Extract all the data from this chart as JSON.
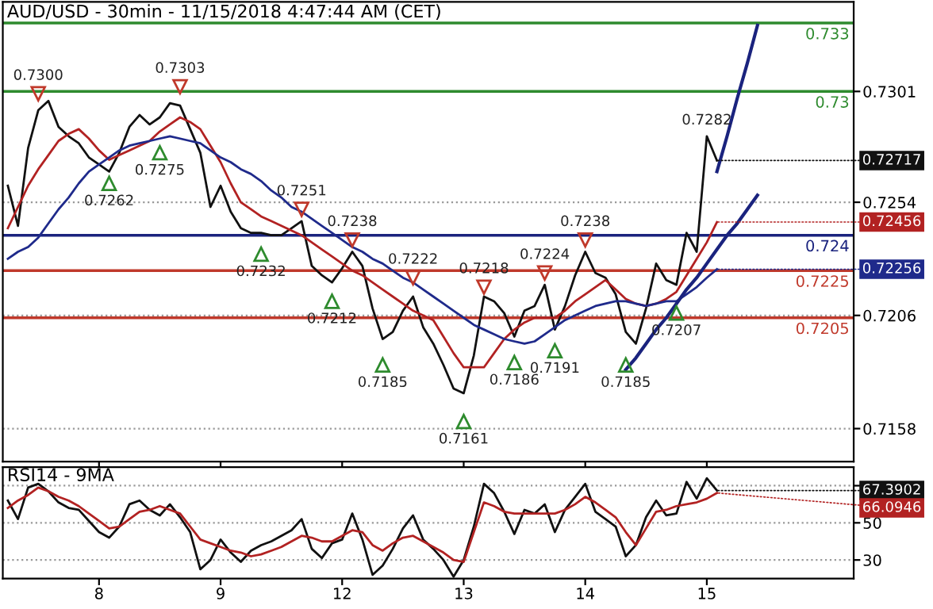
{
  "chart_data": [
    {
      "type": "line",
      "title": "AUD/USD - 30min - 11/15/2018 4:47:44 AM (CET)",
      "categories": [
        null,
        null,
        null,
        null,
        null,
        null,
        null,
        null,
        null,
        "8",
        null,
        null,
        null,
        null,
        null,
        null,
        null,
        null,
        null,
        null,
        null,
        "9",
        null,
        null,
        null,
        null,
        null,
        null,
        null,
        null,
        null,
        null,
        null,
        "12",
        null,
        null,
        null,
        null,
        null,
        null,
        null,
        null,
        null,
        null,
        null,
        "13",
        null,
        null,
        null,
        null,
        null,
        null,
        null,
        null,
        null,
        null,
        null,
        "14",
        null,
        null,
        null,
        null,
        null,
        null,
        null,
        null,
        null,
        null,
        null,
        "15",
        null,
        null,
        null,
        null,
        null,
        null,
        null,
        null,
        null,
        null,
        null,
        null,
        null,
        null
      ],
      "ylim": [
        0.7144,
        0.7339
      ],
      "yticks": [
        0.7301,
        0.7254,
        0.7206,
        0.7158
      ],
      "grid": "y",
      "tick_labels": "y",
      "series": [
        {
          "type": "line",
          "color": "#111111",
          "values": [
            0.7261,
            0.7244,
            0.7277,
            0.7293,
            0.7297,
            0.7286,
            0.7282,
            0.7279,
            0.7273,
            0.727,
            0.7267,
            0.7275,
            0.7286,
            0.7291,
            0.7287,
            0.729,
            0.7296,
            0.7295,
            0.7285,
            0.7275,
            0.7252,
            0.7261,
            0.725,
            0.7243,
            0.7241,
            0.7241,
            0.724,
            0.724,
            0.7243,
            0.7246,
            0.7227,
            0.7223,
            0.722,
            0.7226,
            0.7233,
            0.7227,
            0.7209,
            0.7196,
            0.7199,
            0.7208,
            0.7214,
            0.7201,
            0.7194,
            0.7185,
            0.7175,
            0.7173,
            0.7189,
            0.7214,
            0.7212,
            0.7207,
            0.7197,
            0.7208,
            0.721,
            0.7219,
            0.72,
            0.721,
            0.7223,
            0.7233,
            0.7224,
            0.7222,
            0.7215,
            0.7199,
            0.7194,
            0.7209,
            0.7228,
            0.7221,
            0.7219,
            0.7241,
            0.7233,
            0.7282,
            0.72717,
            null,
            null,
            null,
            null,
            null,
            null,
            null,
            null,
            null,
            null,
            null,
            null,
            null
          ],
          "value_labels": [
            null,
            null,
            null,
            null,
            null,
            null,
            null,
            null,
            null,
            null,
            null,
            null,
            null,
            null,
            null,
            null,
            null,
            null,
            null,
            null,
            null,
            null,
            null,
            null,
            null,
            null,
            null,
            null,
            null,
            null,
            null,
            null,
            null,
            null,
            null,
            null,
            null,
            null,
            null,
            null,
            null,
            null,
            null,
            null,
            null,
            null,
            null,
            null,
            null,
            null,
            null,
            null,
            null,
            null,
            null,
            null,
            null,
            null,
            null,
            null,
            null,
            null,
            null,
            null,
            null,
            null,
            null,
            null,
            null,
            "0.7282",
            "0.72717",
            null,
            null,
            null,
            null,
            null,
            null,
            null,
            null,
            null,
            null,
            null,
            null,
            null
          ]
        },
        {
          "type": "line",
          "color": "#b22222",
          "values": [
            0.7243,
            0.7252,
            0.7261,
            0.7268,
            0.7274,
            0.728,
            0.7283,
            0.7285,
            0.7281,
            0.7276,
            0.7272,
            0.7274,
            0.7276,
            0.7278,
            0.728,
            0.7284,
            0.7287,
            0.729,
            0.7288,
            0.7285,
            0.7278,
            0.7271,
            0.7262,
            0.7254,
            0.7251,
            0.7248,
            0.7246,
            0.7244,
            0.7242,
            0.724,
            0.7237,
            0.7234,
            0.7231,
            0.7228,
            0.7225,
            0.7223,
            0.722,
            0.7217,
            0.7214,
            0.7211,
            0.7208,
            0.7206,
            0.7204,
            0.7197,
            0.719,
            0.7184,
            0.7184,
            0.7184,
            0.719,
            0.7196,
            0.72,
            0.7203,
            0.7205,
            0.7205,
            0.7205,
            0.7208,
            0.7212,
            0.7215,
            0.7218,
            0.7221,
            0.7217,
            0.7213,
            0.7211,
            0.721,
            0.7211,
            0.7213,
            0.7216,
            0.7223,
            0.723,
            0.7237,
            0.72456,
            null,
            null,
            null,
            null,
            null,
            null,
            null,
            null,
            null,
            null,
            null,
            null,
            null
          ],
          "value_labels": [
            null,
            null,
            null,
            null,
            null,
            null,
            null,
            null,
            null,
            null,
            null,
            null,
            null,
            null,
            null,
            null,
            null,
            null,
            null,
            null,
            null,
            null,
            null,
            null,
            null,
            null,
            null,
            null,
            null,
            null,
            null,
            null,
            null,
            null,
            null,
            null,
            null,
            null,
            null,
            null,
            null,
            null,
            null,
            null,
            null,
            null,
            null,
            null,
            null,
            null,
            null,
            null,
            null,
            null,
            null,
            null,
            null,
            null,
            null,
            null,
            null,
            null,
            null,
            null,
            null,
            null,
            null,
            null,
            null,
            null,
            "0.72456",
            null,
            null,
            null,
            null,
            null,
            null,
            null,
            null,
            null,
            null,
            null,
            null,
            null
          ]
        },
        {
          "type": "line",
          "color": "#1f2a8b",
          "values": [
            0.723,
            0.7233,
            0.7235,
            0.7239,
            0.7245,
            0.7251,
            0.7256,
            0.7262,
            0.7267,
            0.727,
            0.7273,
            0.7276,
            0.7278,
            0.7279,
            0.728,
            0.7281,
            0.7282,
            0.7281,
            0.728,
            0.7279,
            0.7276,
            0.7273,
            0.7271,
            0.7268,
            0.7266,
            0.7263,
            0.7259,
            0.7256,
            0.7252,
            0.725,
            0.7247,
            0.7244,
            0.7241,
            0.7238,
            0.7235,
            0.7233,
            0.723,
            0.7228,
            0.7225,
            0.7222,
            0.722,
            0.7217,
            0.7214,
            0.7211,
            0.7208,
            0.7205,
            0.7202,
            0.72,
            0.7198,
            0.7196,
            0.7195,
            0.7194,
            0.7195,
            0.7198,
            0.7201,
            0.7204,
            0.7206,
            0.7208,
            0.721,
            0.7211,
            0.7212,
            0.7212,
            0.7211,
            0.721,
            0.7211,
            0.7212,
            0.7212,
            0.7215,
            0.7218,
            0.7222,
            0.72256,
            null,
            null,
            null,
            null,
            null,
            null,
            null,
            null,
            null,
            null,
            null,
            null,
            null
          ],
          "value_labels": [
            null,
            null,
            null,
            null,
            null,
            null,
            null,
            null,
            null,
            null,
            null,
            null,
            null,
            null,
            null,
            null,
            null,
            null,
            null,
            null,
            null,
            null,
            null,
            null,
            null,
            null,
            null,
            null,
            null,
            null,
            null,
            null,
            null,
            null,
            null,
            null,
            null,
            null,
            null,
            null,
            null,
            null,
            null,
            null,
            null,
            null,
            null,
            null,
            null,
            null,
            null,
            null,
            null,
            null,
            null,
            null,
            null,
            null,
            null,
            null,
            null,
            null,
            null,
            null,
            null,
            null,
            null,
            null,
            null,
            null,
            "0.72256",
            null,
            null,
            null,
            null,
            null,
            null,
            null,
            null,
            null,
            null,
            null,
            null,
            null
          ]
        },
        {
          "type": "line",
          "color": "#1a237e",
          "values": [
            null,
            null,
            null,
            null,
            null,
            null,
            null,
            null,
            null,
            null,
            null,
            null,
            null,
            null,
            null,
            null,
            null,
            null,
            null,
            null,
            null,
            null,
            null,
            null,
            null,
            null,
            null,
            null,
            null,
            null,
            null,
            null,
            null,
            null,
            null,
            null,
            null,
            null,
            null,
            null,
            null,
            null,
            null,
            null,
            null,
            null,
            null,
            null,
            null,
            null,
            null,
            null,
            null,
            null,
            null,
            null,
            null,
            null,
            null,
            null,
            null,
            0.7183,
            0.7188,
            0.7194,
            0.72,
            0.7205,
            0.7211,
            0.7217,
            0.7222,
            0.7228,
            0.7234,
            0.724,
            0.7245,
            0.7251,
            0.7257,
            null,
            null,
            null,
            null,
            null,
            null,
            null,
            null,
            null
          ]
        },
        {
          "type": "line",
          "color": "#1a237e",
          "values": [
            null,
            null,
            null,
            null,
            null,
            null,
            null,
            null,
            null,
            null,
            null,
            null,
            null,
            null,
            null,
            null,
            null,
            null,
            null,
            null,
            null,
            null,
            null,
            null,
            null,
            null,
            null,
            null,
            null,
            null,
            null,
            null,
            null,
            null,
            null,
            null,
            null,
            null,
            null,
            null,
            null,
            null,
            null,
            null,
            null,
            null,
            null,
            null,
            null,
            null,
            null,
            null,
            null,
            null,
            null,
            null,
            null,
            null,
            null,
            null,
            null,
            null,
            null,
            null,
            null,
            null,
            null,
            null,
            null,
            null,
            0.7267,
            0.7282,
            0.7298,
            0.7313,
            0.7329,
            null,
            null,
            null,
            null,
            null,
            null,
            null,
            null,
            null
          ]
        },
        {
          "type": "scatter",
          "color": "#c0392b",
          "marker": "triangle",
          "values": [
            null,
            null,
            null,
            0.73,
            null,
            null,
            null,
            null,
            null,
            null,
            null,
            null,
            null,
            null,
            null,
            null,
            null,
            0.7303,
            null,
            null,
            null,
            null,
            null,
            null,
            null,
            null,
            null,
            null,
            null,
            0.7251,
            null,
            null,
            null,
            null,
            0.7238,
            null,
            null,
            null,
            null,
            null,
            0.7222,
            null,
            null,
            null,
            null,
            null,
            null,
            0.7218,
            null,
            null,
            null,
            null,
            null,
            0.7224,
            null,
            null,
            null,
            0.7238,
            null,
            null,
            null,
            null,
            null,
            null,
            null,
            null,
            null,
            null,
            null,
            null,
            null,
            null,
            null,
            null,
            null,
            null,
            null,
            null,
            null,
            null,
            null,
            null,
            null,
            null
          ],
          "value_labels": [
            null,
            null,
            null,
            "0.7300",
            null,
            null,
            null,
            null,
            null,
            null,
            null,
            null,
            null,
            null,
            null,
            null,
            null,
            "0.7303",
            null,
            null,
            null,
            null,
            null,
            null,
            null,
            null,
            null,
            null,
            null,
            "0.7251",
            null,
            null,
            null,
            null,
            "0.7238",
            null,
            null,
            null,
            null,
            null,
            "0.7222",
            null,
            null,
            null,
            null,
            null,
            null,
            "0.7218",
            null,
            null,
            null,
            null,
            null,
            "0.7224",
            null,
            null,
            null,
            "0.7238",
            null,
            null,
            null,
            null,
            null,
            null,
            null,
            null,
            null,
            null,
            null,
            null,
            null,
            null,
            null,
            null,
            null,
            null,
            null,
            null,
            null,
            null,
            null,
            null,
            null,
            null
          ]
        },
        {
          "type": "scatter",
          "color": "#2e8b2e",
          "marker": "triangle",
          "values": [
            null,
            null,
            null,
            null,
            null,
            null,
            null,
            null,
            null,
            null,
            0.7262,
            null,
            null,
            null,
            null,
            0.7275,
            null,
            null,
            null,
            null,
            null,
            null,
            null,
            null,
            null,
            0.7232,
            null,
            null,
            null,
            null,
            null,
            null,
            0.7212,
            null,
            null,
            null,
            null,
            0.7185,
            null,
            null,
            null,
            null,
            null,
            null,
            null,
            0.7161,
            null,
            null,
            null,
            null,
            0.7186,
            null,
            null,
            null,
            0.7191,
            null,
            null,
            null,
            null,
            null,
            null,
            0.7185,
            null,
            null,
            null,
            null,
            0.7207,
            null,
            null,
            null,
            null,
            null,
            null,
            null,
            null,
            null,
            null,
            null,
            null,
            null,
            null,
            null,
            null,
            null
          ],
          "value_labels": [
            null,
            null,
            null,
            null,
            null,
            null,
            null,
            null,
            null,
            null,
            "0.7262",
            null,
            null,
            null,
            null,
            "0.7275",
            null,
            null,
            null,
            null,
            null,
            null,
            null,
            null,
            null,
            "0.7232",
            null,
            null,
            null,
            null,
            null,
            null,
            "0.7212",
            null,
            null,
            null,
            null,
            "0.7185",
            null,
            null,
            null,
            null,
            null,
            null,
            null,
            "0.7161",
            null,
            null,
            null,
            null,
            "0.7186",
            null,
            null,
            null,
            "0.7191",
            null,
            null,
            null,
            null,
            null,
            null,
            "0.7185",
            null,
            null,
            null,
            null,
            "0.7207",
            null,
            null,
            null,
            null,
            null,
            null,
            null,
            null,
            null,
            null,
            null,
            null,
            null,
            null,
            null,
            null,
            null
          ]
        }
      ],
      "ref_lines": [
        {
          "axis": "y",
          "value": 0.733,
          "label": "0.733",
          "color": "#2e8b2e"
        },
        {
          "axis": "y",
          "value": 0.7301,
          "label": "0.73",
          "color": "#2e8b2e"
        },
        {
          "axis": "y",
          "value": 0.724,
          "label": "0.724",
          "color": "#1a237e"
        },
        {
          "axis": "y",
          "value": 0.7225,
          "label": "0.7225",
          "color": "#c0392b"
        },
        {
          "axis": "y",
          "value": 0.7205,
          "label": "0.7205",
          "color": "#c0392b"
        }
      ]
    },
    {
      "type": "line",
      "title": "RSI14 - 9MA",
      "categories": [
        null,
        null,
        null,
        null,
        null,
        null,
        null,
        null,
        null,
        "8",
        null,
        null,
        null,
        null,
        null,
        null,
        null,
        null,
        null,
        null,
        null,
        "9",
        null,
        null,
        null,
        null,
        null,
        null,
        null,
        null,
        null,
        null,
        null,
        "12",
        null,
        null,
        null,
        null,
        null,
        null,
        null,
        null,
        null,
        null,
        null,
        "13",
        null,
        null,
        null,
        null,
        null,
        null,
        null,
        null,
        null,
        null,
        null,
        "14",
        null,
        null,
        null,
        null,
        null,
        null,
        null,
        null,
        null,
        null,
        null,
        "15",
        null,
        null,
        null,
        null,
        null,
        null,
        null,
        null,
        null,
        null,
        null,
        null,
        null,
        null
      ],
      "ylim": [
        20,
        80
      ],
      "yticks": [
        30,
        50,
        {
          "value": 70,
          "label": null
        }
      ],
      "grid": "y",
      "series": [
        {
          "type": "line",
          "color": "#111111",
          "values": [
            62,
            52,
            69,
            71,
            67,
            61,
            58,
            57,
            51,
            45,
            42,
            48,
            60,
            62,
            57,
            54,
            60,
            53,
            45,
            25,
            30,
            41,
            34,
            29,
            35,
            38,
            40,
            43,
            46,
            52,
            36,
            31,
            39,
            41,
            55,
            41,
            22,
            27,
            36,
            47,
            54,
            41,
            36,
            30,
            21,
            30,
            48,
            71,
            66,
            56,
            44,
            57,
            55,
            60,
            45,
            57,
            64,
            71,
            56,
            52,
            48,
            32,
            38,
            53,
            62,
            54,
            55,
            72,
            63,
            74,
            67.3902,
            null,
            null,
            null,
            null,
            null,
            null,
            null,
            null,
            null,
            null,
            null,
            null,
            null
          ],
          "value_labels": [
            null,
            null,
            null,
            null,
            null,
            null,
            null,
            null,
            null,
            null,
            null,
            null,
            null,
            null,
            null,
            null,
            null,
            null,
            null,
            null,
            null,
            null,
            null,
            null,
            null,
            null,
            null,
            null,
            null,
            null,
            null,
            null,
            null,
            null,
            null,
            null,
            null,
            null,
            null,
            null,
            null,
            null,
            null,
            null,
            null,
            null,
            null,
            null,
            null,
            null,
            null,
            null,
            null,
            null,
            null,
            null,
            null,
            null,
            null,
            null,
            null,
            null,
            null,
            null,
            null,
            null,
            null,
            null,
            null,
            null,
            "67.3902",
            null,
            null,
            null,
            null,
            null,
            null,
            null,
            null,
            null,
            null,
            null,
            null,
            null
          ]
        },
        {
          "type": "line",
          "color": "#b22222",
          "values": [
            58,
            62,
            65,
            69,
            67,
            64,
            62,
            59,
            55,
            51,
            47,
            48,
            52,
            56,
            57,
            59,
            57,
            55,
            48,
            41,
            39,
            37,
            35,
            34,
            32,
            33,
            35,
            37,
            40,
            43,
            42,
            40,
            40,
            43,
            46,
            45,
            38,
            35,
            39,
            42,
            43,
            40,
            37,
            34,
            30,
            29,
            45,
            61,
            59,
            56,
            55,
            55,
            55,
            55,
            55,
            57,
            60,
            64,
            61,
            57,
            53,
            45,
            38,
            47,
            56,
            57,
            59,
            60,
            61,
            63,
            66.0946,
            null,
            null,
            null,
            null,
            null,
            null,
            null,
            null,
            null,
            null,
            null,
            null,
            null
          ],
          "value_labels": [
            null,
            null,
            null,
            null,
            null,
            null,
            null,
            null,
            null,
            null,
            null,
            null,
            null,
            null,
            null,
            null,
            null,
            null,
            null,
            null,
            null,
            null,
            null,
            null,
            null,
            null,
            null,
            null,
            null,
            null,
            null,
            null,
            null,
            null,
            null,
            null,
            null,
            null,
            null,
            null,
            null,
            null,
            null,
            null,
            null,
            null,
            null,
            null,
            null,
            null,
            null,
            null,
            null,
            null,
            null,
            null,
            null,
            null,
            null,
            null,
            null,
            null,
            null,
            null,
            null,
            null,
            null,
            null,
            null,
            null,
            "66.0946",
            null,
            null,
            null,
            null,
            null,
            null,
            null,
            null,
            null,
            null,
            null,
            null,
            null
          ]
        }
      ]
    }
  ]
}
